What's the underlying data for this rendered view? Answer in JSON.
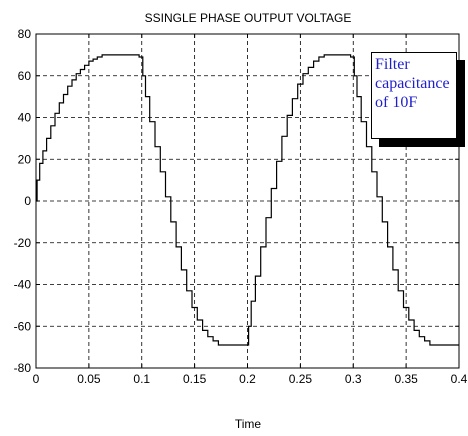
{
  "chart_data": {
    "type": "line",
    "title": "SSINGLE PHASE OUTPUT VOLTAGE",
    "xlabel": "Time",
    "ylabel": "",
    "xlim": [
      0,
      0.4
    ],
    "ylim": [
      -80,
      80
    ],
    "xticks": [
      "0",
      "0.05",
      "0.1",
      "0.15",
      "0.2",
      "0.25",
      "0.3",
      "0.35",
      "0.4"
    ],
    "yticks": [
      "80",
      "60",
      "40",
      "20",
      "0",
      "-20",
      "-40",
      "-60",
      "-80"
    ],
    "grid": true,
    "series": [
      {
        "x": [
          0,
          0.002,
          0.005,
          0.008,
          0.012,
          0.016,
          0.02,
          0.024,
          0.028,
          0.032,
          0.036,
          0.04,
          0.044,
          0.048,
          0.052,
          0.056,
          0.06,
          0.065,
          0.075,
          0.085,
          0.095,
          0.1,
          0.102,
          0.105,
          0.11,
          0.115,
          0.12,
          0.125,
          0.13,
          0.135,
          0.14,
          0.145,
          0.15,
          0.155,
          0.16,
          0.165,
          0.17,
          0.175,
          0.185,
          0.195,
          0.2,
          0.202,
          0.205,
          0.21,
          0.215,
          0.22,
          0.225,
          0.23,
          0.235,
          0.24,
          0.245,
          0.25,
          0.255,
          0.26,
          0.265,
          0.27,
          0.275,
          0.285,
          0.295,
          0.3,
          0.302,
          0.305,
          0.31,
          0.315,
          0.32,
          0.325,
          0.33,
          0.335,
          0.34,
          0.345,
          0.35,
          0.355,
          0.36,
          0.365,
          0.37,
          0.375,
          0.385,
          0.4
        ],
        "y": [
          0,
          10,
          18,
          24,
          30,
          36,
          42,
          47,
          51,
          55,
          58,
          61,
          63,
          65,
          67,
          68,
          69,
          70,
          70,
          70,
          70,
          69,
          60,
          50,
          38,
          26,
          14,
          2,
          -10,
          -22,
          -33,
          -43,
          -51,
          -57,
          -62,
          -65,
          -67,
          -69,
          -69,
          -69,
          -69,
          -60,
          -48,
          -36,
          -22,
          -8,
          6,
          19,
          31,
          41,
          49,
          56,
          61,
          64,
          67,
          69,
          70,
          70,
          70,
          69,
          60,
          50,
          38,
          26,
          14,
          2,
          -10,
          -22,
          -33,
          -43,
          -51,
          -57,
          -62,
          -65,
          -67,
          -69,
          -69,
          -69
        ]
      }
    ],
    "line_color": "#000000",
    "annotation": {
      "text": "Filter\ncapacitance\nof 10F",
      "color": "#1f1fcc"
    }
  }
}
